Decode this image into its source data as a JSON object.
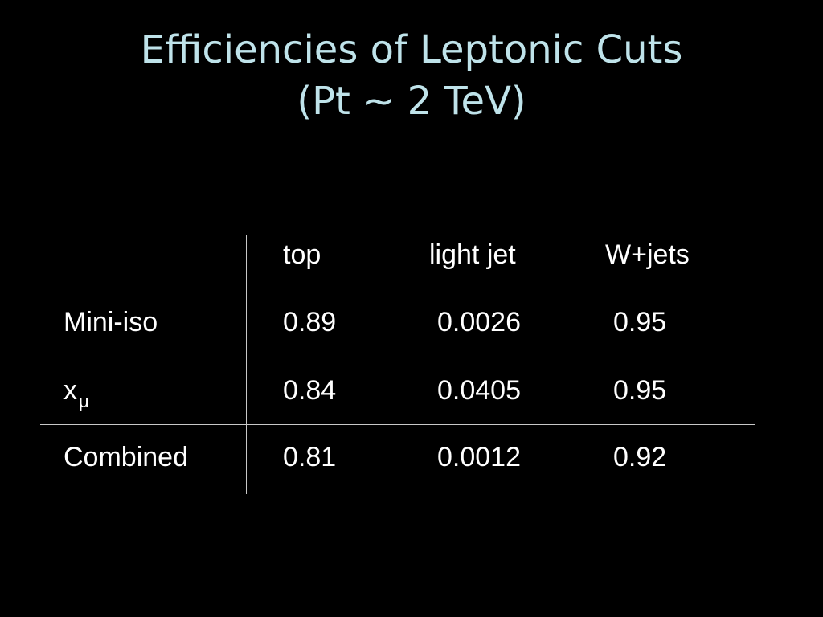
{
  "title": {
    "line1": "Efficiencies of Leptonic Cuts",
    "line2": "(Pt ~ 2 TeV)"
  },
  "table": {
    "headers": [
      "top",
      "light jet",
      "W+jets"
    ],
    "rows": [
      {
        "label": "Mini-iso",
        "label_sub": "",
        "values": [
          "0.89",
          "0.0026",
          "0.95"
        ]
      },
      {
        "label": "x",
        "label_sub": "μ",
        "values": [
          "0.84",
          "0.0405",
          "0.95"
        ]
      },
      {
        "label": "Combined",
        "label_sub": "",
        "values": [
          "0.81",
          "0.0012",
          "0.92"
        ]
      }
    ]
  },
  "colors": {
    "background": "#000000",
    "title": "#bfe3ea",
    "text": "#ffffff",
    "rules": "#c8c8c8"
  }
}
